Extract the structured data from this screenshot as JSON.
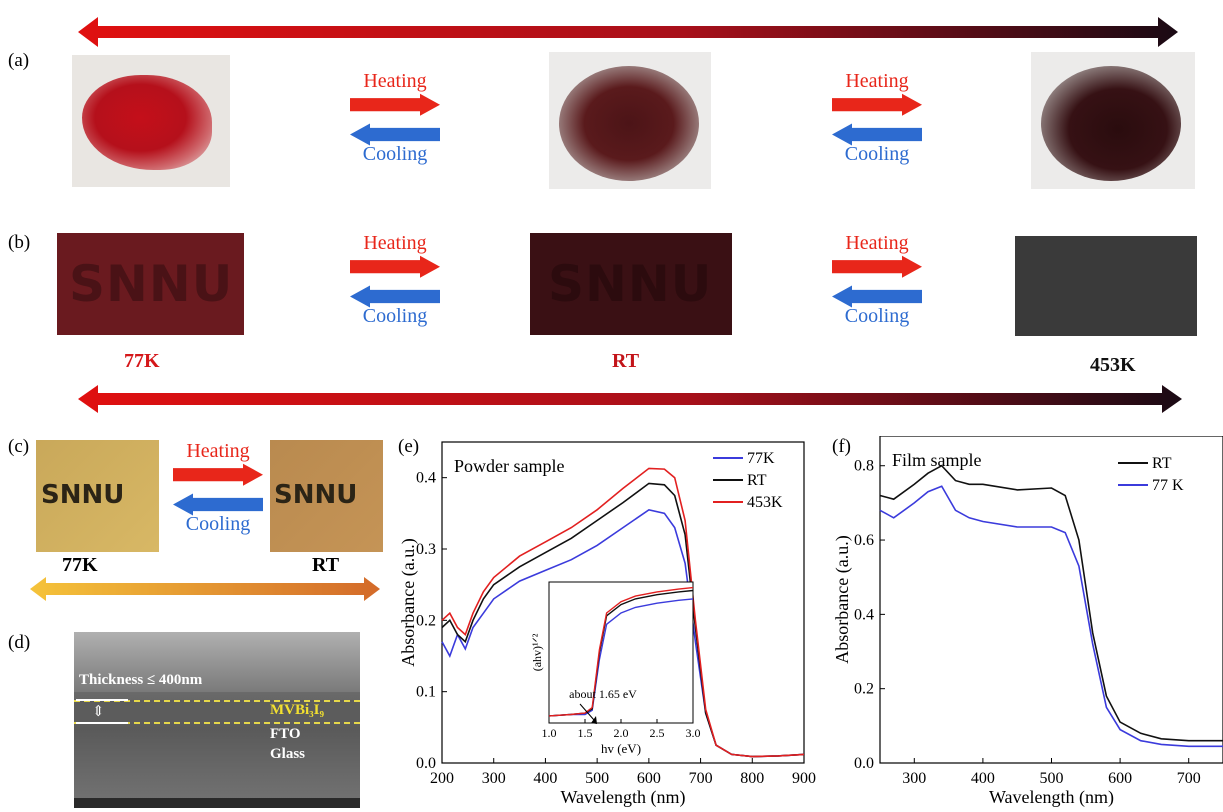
{
  "panels": {
    "a": "(a)",
    "b": "(b)",
    "c": "(c)",
    "d": "(d)",
    "e": "(e)",
    "f": "(f)"
  },
  "transitions": {
    "heating": "Heating",
    "cooling": "Cooling"
  },
  "temperatures": {
    "low": "77K",
    "room": "RT",
    "high": "453K"
  },
  "film_text": "SNNU",
  "sem": {
    "thickness_label": "Thickness ≤ 400nm",
    "layers": [
      "MVBi₃I₉",
      "FTO",
      "Glass"
    ]
  },
  "colors": {
    "heating": "#e8261a",
    "cooling": "#2d6bd0",
    "arrow_start": "#e01010",
    "arrow_end": "#1a0a14",
    "gold_start": "#f5c33a",
    "gold_end": "#d36a2a"
  },
  "chart_data": [
    {
      "type": "line",
      "panel": "(e)",
      "title": "Powder sample",
      "xlabel": "Wavelength (nm)",
      "ylabel": "Absorbance (a.u.)",
      "xlim": [
        200,
        900
      ],
      "ylim": [
        0.0,
        0.45
      ],
      "xticks": [
        200,
        300,
        400,
        500,
        600,
        700,
        800,
        900
      ],
      "yticks": [
        0.0,
        0.1,
        0.2,
        0.3,
        0.4
      ],
      "legend_position": "top-right",
      "series": [
        {
          "name": "77K",
          "color": "#3b3bdc",
          "x": [
            200,
            215,
            230,
            245,
            260,
            280,
            300,
            350,
            400,
            450,
            500,
            550,
            600,
            630,
            650,
            670,
            690,
            710,
            730,
            760,
            800,
            850,
            900
          ],
          "y": [
            0.17,
            0.15,
            0.18,
            0.16,
            0.19,
            0.21,
            0.23,
            0.255,
            0.27,
            0.285,
            0.305,
            0.33,
            0.355,
            0.35,
            0.33,
            0.28,
            0.17,
            0.07,
            0.025,
            0.012,
            0.009,
            0.01,
            0.012
          ]
        },
        {
          "name": "RT",
          "color": "#111111",
          "x": [
            200,
            215,
            230,
            245,
            260,
            280,
            300,
            350,
            400,
            450,
            500,
            550,
            600,
            630,
            650,
            670,
            690,
            710,
            730,
            760,
            800,
            850,
            900
          ],
          "y": [
            0.19,
            0.2,
            0.18,
            0.17,
            0.2,
            0.23,
            0.25,
            0.275,
            0.295,
            0.315,
            0.34,
            0.365,
            0.392,
            0.39,
            0.375,
            0.32,
            0.19,
            0.07,
            0.025,
            0.012,
            0.009,
            0.01,
            0.012
          ]
        },
        {
          "name": "453K",
          "color": "#e22020",
          "x": [
            200,
            215,
            230,
            245,
            260,
            280,
            300,
            350,
            400,
            450,
            500,
            550,
            600,
            630,
            650,
            670,
            690,
            710,
            730,
            760,
            800,
            850,
            900
          ],
          "y": [
            0.2,
            0.21,
            0.19,
            0.18,
            0.21,
            0.24,
            0.26,
            0.29,
            0.31,
            0.33,
            0.355,
            0.385,
            0.413,
            0.412,
            0.4,
            0.34,
            0.2,
            0.075,
            0.025,
            0.012,
            0.009,
            0.01,
            0.012
          ]
        }
      ],
      "inset": {
        "xlabel": "hv (eV)",
        "ylabel": "(ahv)¹ᐟ²",
        "xlim": [
          1.0,
          3.0
        ],
        "xticks": [
          1.0,
          1.5,
          2.0,
          2.5,
          3.0
        ],
        "annotation": "about 1.65 eV",
        "series": [
          {
            "name": "77K",
            "color": "#3b3bdc",
            "x": [
              1.0,
              1.3,
              1.5,
              1.6,
              1.7,
              1.8,
              2.0,
              2.2,
              2.5,
              2.8,
              3.0
            ],
            "y": [
              0.05,
              0.06,
              0.06,
              0.09,
              0.45,
              0.7,
              0.78,
              0.82,
              0.85,
              0.87,
              0.88
            ]
          },
          {
            "name": "RT",
            "color": "#111111",
            "x": [
              1.0,
              1.3,
              1.5,
              1.6,
              1.7,
              1.8,
              2.0,
              2.2,
              2.5,
              2.8,
              3.0
            ],
            "y": [
              0.05,
              0.06,
              0.07,
              0.1,
              0.5,
              0.76,
              0.84,
              0.88,
              0.91,
              0.93,
              0.94
            ]
          },
          {
            "name": "453K",
            "color": "#e22020",
            "x": [
              1.0,
              1.3,
              1.5,
              1.6,
              1.7,
              1.8,
              2.0,
              2.2,
              2.5,
              2.8,
              3.0
            ],
            "y": [
              0.05,
              0.06,
              0.07,
              0.11,
              0.52,
              0.78,
              0.86,
              0.9,
              0.93,
              0.95,
              0.96
            ]
          }
        ]
      }
    },
    {
      "type": "line",
      "panel": "(f)",
      "title": "Film sample",
      "xlabel": "Wavelength (nm)",
      "ylabel": "Absorbance (a.u.)",
      "xlim": [
        250,
        750
      ],
      "ylim": [
        0.0,
        0.88
      ],
      "xticks": [
        300,
        400,
        500,
        600,
        700
      ],
      "yticks": [
        0.0,
        0.2,
        0.4,
        0.6,
        0.8
      ],
      "legend_position": "top-right",
      "series": [
        {
          "name": "RT",
          "color": "#111111",
          "x": [
            250,
            270,
            300,
            320,
            340,
            360,
            380,
            400,
            450,
            500,
            520,
            540,
            560,
            580,
            600,
            630,
            660,
            700,
            750
          ],
          "y": [
            0.72,
            0.71,
            0.75,
            0.78,
            0.8,
            0.76,
            0.75,
            0.75,
            0.735,
            0.74,
            0.72,
            0.6,
            0.35,
            0.18,
            0.11,
            0.08,
            0.065,
            0.06,
            0.06
          ]
        },
        {
          "name": "77 K",
          "color": "#3b3bdc",
          "x": [
            250,
            270,
            300,
            320,
            340,
            360,
            380,
            400,
            450,
            500,
            520,
            540,
            560,
            580,
            600,
            630,
            660,
            700,
            750
          ],
          "y": [
            0.68,
            0.66,
            0.7,
            0.73,
            0.745,
            0.68,
            0.66,
            0.65,
            0.635,
            0.635,
            0.62,
            0.53,
            0.32,
            0.15,
            0.09,
            0.06,
            0.05,
            0.045,
            0.045
          ]
        }
      ]
    }
  ]
}
